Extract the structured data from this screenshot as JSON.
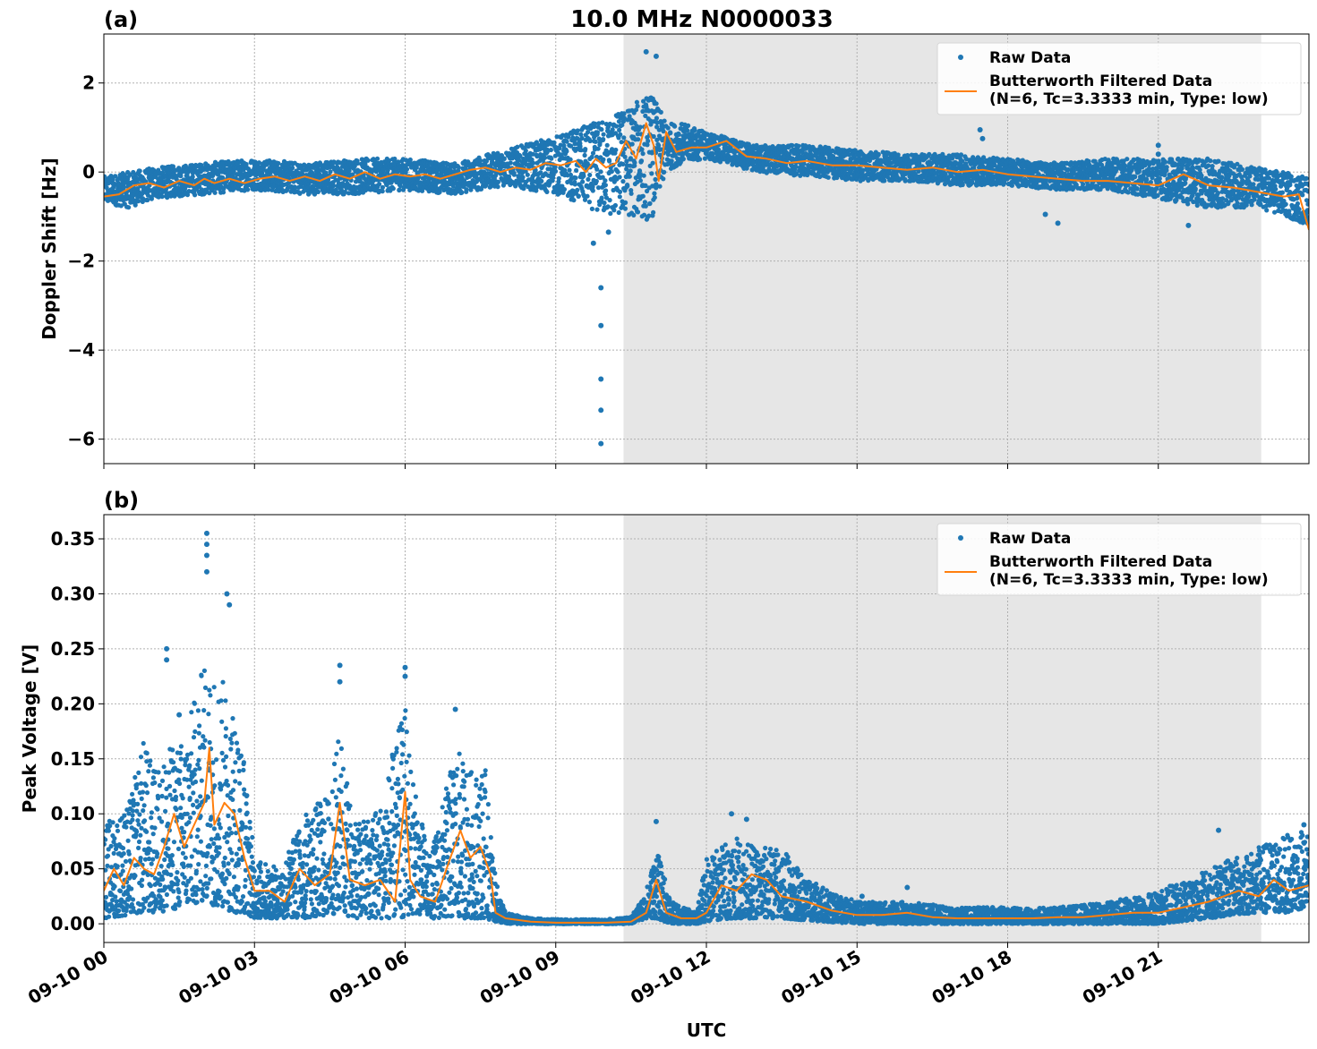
{
  "chart_data": [
    {
      "panel_label": "(a)",
      "type": "scatter",
      "title": "10.0 MHz N0000033",
      "ylabel": "Doppler Shift [Hz]",
      "xlabel": "",
      "xlim": [
        0,
        24
      ],
      "ylim": [
        -6.55,
        3.1
      ],
      "yticks": [
        2,
        0,
        -2,
        -4,
        -6
      ],
      "ytick_labels": [
        "2",
        "0",
        "−2",
        "−4",
        "−6"
      ],
      "grid": true,
      "legend_position": "top-right",
      "shaded_region": {
        "x_start": 10.35,
        "x_end": 23.05,
        "color": "#e6e6e6"
      },
      "series": [
        {
          "name": "Raw Data",
          "style": "points",
          "color": "#1f77b4",
          "envelope_x": [
            0.0,
            0.5,
            1.0,
            2.0,
            3.0,
            4.0,
            5.0,
            6.0,
            7.0,
            8.0,
            9.0,
            9.5,
            10.0,
            10.5,
            10.9,
            11.2,
            11.5,
            12.0,
            13.0,
            14.0,
            15.0,
            16.0,
            17.0,
            18.0,
            19.0,
            20.0,
            21.0,
            22.0,
            23.0,
            24.0
          ],
          "envelope_low": [
            -0.7,
            -0.8,
            -0.6,
            -0.5,
            -0.4,
            -0.5,
            -0.5,
            -0.4,
            -0.5,
            -0.3,
            -0.5,
            -0.7,
            -1.0,
            -1.0,
            -1.1,
            0.0,
            0.2,
            0.3,
            0.0,
            -0.1,
            -0.2,
            -0.2,
            -0.3,
            -0.3,
            -0.4,
            -0.4,
            -0.6,
            -0.8,
            -0.8,
            -1.2
          ],
          "envelope_high": [
            -0.1,
            0.0,
            0.1,
            0.2,
            0.3,
            0.2,
            0.3,
            0.3,
            0.2,
            0.5,
            0.8,
            1.0,
            1.2,
            1.5,
            1.8,
            1.1,
            1.1,
            0.9,
            0.6,
            0.6,
            0.5,
            0.4,
            0.4,
            0.3,
            0.2,
            0.3,
            0.3,
            0.3,
            0.1,
            -0.1
          ],
          "outliers": [
            [
              9.75,
              -1.6
            ],
            [
              9.9,
              -2.6
            ],
            [
              9.9,
              -3.45
            ],
            [
              9.9,
              -4.65
            ],
            [
              9.9,
              -5.35
            ],
            [
              9.9,
              -6.1
            ],
            [
              10.05,
              -1.35
            ],
            [
              10.8,
              2.7
            ],
            [
              11.0,
              2.6
            ],
            [
              17.45,
              0.95
            ],
            [
              17.5,
              0.75
            ],
            [
              18.75,
              -0.95
            ],
            [
              19.0,
              -1.15
            ],
            [
              21.0,
              0.6
            ],
            [
              21.0,
              0.4
            ],
            [
              21.6,
              -1.2
            ]
          ]
        },
        {
          "name": "Butterworth Filtered Data\n(N=6, Tc=3.3333 min, Type: low)",
          "style": "line",
          "color": "#ff7f0e",
          "x": [
            0.0,
            0.3,
            0.6,
            0.9,
            1.2,
            1.5,
            1.8,
            2.0,
            2.2,
            2.5,
            2.8,
            3.1,
            3.4,
            3.7,
            4.0,
            4.3,
            4.6,
            4.9,
            5.2,
            5.5,
            5.8,
            6.1,
            6.4,
            6.7,
            7.0,
            7.3,
            7.6,
            7.9,
            8.2,
            8.5,
            8.8,
            9.1,
            9.4,
            9.6,
            9.8,
            10.0,
            10.2,
            10.4,
            10.6,
            10.8,
            10.95,
            11.05,
            11.2,
            11.4,
            11.7,
            12.0,
            12.4,
            12.8,
            13.2,
            13.6,
            14.0,
            14.5,
            15.0,
            15.5,
            16.0,
            16.5,
            17.0,
            17.5,
            18.0,
            18.5,
            19.0,
            19.5,
            20.0,
            20.5,
            21.0,
            21.5,
            22.0,
            22.5,
            23.0,
            23.5,
            23.8,
            24.0
          ],
          "y": [
            -0.55,
            -0.5,
            -0.3,
            -0.25,
            -0.35,
            -0.2,
            -0.3,
            -0.15,
            -0.25,
            -0.15,
            -0.25,
            -0.15,
            -0.1,
            -0.2,
            -0.1,
            -0.2,
            -0.05,
            -0.15,
            0.0,
            -0.15,
            -0.05,
            -0.1,
            -0.05,
            -0.15,
            -0.05,
            0.05,
            0.1,
            0.0,
            0.1,
            0.05,
            0.2,
            0.15,
            0.25,
            0.0,
            0.3,
            0.1,
            0.2,
            0.7,
            0.3,
            1.1,
            0.6,
            -0.2,
            0.9,
            0.45,
            0.55,
            0.55,
            0.7,
            0.35,
            0.3,
            0.2,
            0.25,
            0.15,
            0.15,
            0.1,
            0.05,
            0.1,
            0.0,
            0.05,
            -0.05,
            -0.1,
            -0.15,
            -0.2,
            -0.2,
            -0.25,
            -0.3,
            -0.05,
            -0.3,
            -0.35,
            -0.45,
            -0.55,
            -0.5,
            -1.3
          ]
        }
      ],
      "legend": [
        {
          "label": "Raw Data",
          "marker": "point",
          "color": "#1f77b4"
        },
        {
          "label_line1": "Butterworth Filtered Data",
          "label_line2": "(N=6, Tc=3.3333 min, Type: low)",
          "marker": "line",
          "color": "#ff7f0e"
        }
      ]
    },
    {
      "panel_label": "(b)",
      "type": "scatter",
      "title": "",
      "ylabel": "Peak Voltage [V]",
      "xlabel": "UTC",
      "xlim": [
        0,
        24
      ],
      "ylim": [
        -0.017,
        0.372
      ],
      "yticks": [
        0.35,
        0.3,
        0.25,
        0.2,
        0.15,
        0.1,
        0.05,
        0.0
      ],
      "ytick_labels": [
        "0.35",
        "0.30",
        "0.25",
        "0.20",
        "0.15",
        "0.10",
        "0.05",
        "0.00"
      ],
      "xticks": [
        0,
        3,
        6,
        9,
        12,
        15,
        18,
        21
      ],
      "xtick_labels": [
        "09-10 00",
        "09-10 03",
        "09-10 06",
        "09-10 09",
        "09-10 12",
        "09-10 15",
        "09-10 18",
        "09-10 21"
      ],
      "grid": true,
      "legend_position": "top-right",
      "shaded_region": {
        "x_start": 10.35,
        "x_end": 23.05,
        "color": "#e6e6e6"
      },
      "series": [
        {
          "name": "Raw Data",
          "style": "points",
          "color": "#1f77b4",
          "envelope_x": [
            0.0,
            0.5,
            0.8,
            1.0,
            1.3,
            1.6,
            2.0,
            2.3,
            2.6,
            2.8,
            3.0,
            3.5,
            4.0,
            4.5,
            4.7,
            5.0,
            5.5,
            6.0,
            6.2,
            6.5,
            7.0,
            7.3,
            7.6,
            7.8,
            8.0,
            8.5,
            9.0,
            10.0,
            10.5,
            10.8,
            11.0,
            11.3,
            11.8,
            12.0,
            12.5,
            13.0,
            13.5,
            14.0,
            15.0,
            16.0,
            17.0,
            18.0,
            19.0,
            20.0,
            21.0,
            22.0,
            22.5,
            23.0,
            23.5,
            24.0
          ],
          "envelope_low": [
            0.005,
            0.008,
            0.01,
            0.01,
            0.012,
            0.015,
            0.02,
            0.015,
            0.01,
            0.01,
            0.005,
            0.005,
            0.005,
            0.008,
            0.01,
            0.005,
            0.005,
            0.005,
            0.01,
            0.005,
            0.005,
            0.005,
            0.005,
            0.002,
            0.0,
            0.0,
            0.0,
            0.0,
            0.0,
            0.005,
            0.005,
            0.0,
            0.0,
            0.002,
            0.005,
            0.005,
            0.005,
            0.003,
            0.0,
            0.0,
            0.0,
            0.0,
            0.0,
            0.0,
            0.0,
            0.005,
            0.008,
            0.01,
            0.01,
            0.015
          ],
          "envelope_high": [
            0.09,
            0.11,
            0.17,
            0.14,
            0.16,
            0.17,
            0.24,
            0.23,
            0.2,
            0.15,
            0.06,
            0.05,
            0.1,
            0.12,
            0.18,
            0.09,
            0.11,
            0.2,
            0.12,
            0.06,
            0.16,
            0.14,
            0.14,
            0.04,
            0.01,
            0.005,
            0.004,
            0.004,
            0.006,
            0.03,
            0.07,
            0.02,
            0.01,
            0.06,
            0.08,
            0.07,
            0.07,
            0.04,
            0.02,
            0.02,
            0.015,
            0.015,
            0.015,
            0.02,
            0.03,
            0.05,
            0.06,
            0.07,
            0.08,
            0.085
          ],
          "outliers": [
            [
              1.25,
              0.25
            ],
            [
              1.25,
              0.24
            ],
            [
              1.5,
              0.19
            ],
            [
              2.05,
              0.355
            ],
            [
              2.05,
              0.345
            ],
            [
              2.05,
              0.335
            ],
            [
              2.05,
              0.32
            ],
            [
              2.45,
              0.3
            ],
            [
              2.5,
              0.29
            ],
            [
              4.7,
              0.235
            ],
            [
              4.7,
              0.22
            ],
            [
              6.0,
              0.233
            ],
            [
              6.0,
              0.225
            ],
            [
              7.0,
              0.195
            ],
            [
              11.0,
              0.093
            ],
            [
              12.5,
              0.1
            ],
            [
              12.8,
              0.095
            ],
            [
              15.1,
              0.025
            ],
            [
              16.0,
              0.033
            ],
            [
              22.2,
              0.085
            ],
            [
              23.9,
              0.09
            ]
          ]
        },
        {
          "name": "Butterworth Filtered Data\n(N=6, Tc=3.3333 min, Type: low)",
          "style": "line",
          "color": "#ff7f0e",
          "x": [
            0.0,
            0.2,
            0.4,
            0.6,
            0.8,
            1.0,
            1.2,
            1.4,
            1.6,
            1.8,
            2.0,
            2.1,
            2.2,
            2.4,
            2.6,
            2.8,
            3.0,
            3.3,
            3.6,
            3.9,
            4.2,
            4.5,
            4.7,
            4.9,
            5.2,
            5.5,
            5.8,
            6.0,
            6.1,
            6.3,
            6.6,
            6.9,
            7.1,
            7.3,
            7.5,
            7.7,
            7.8,
            8.0,
            8.5,
            9.0,
            9.5,
            10.0,
            10.5,
            10.8,
            11.0,
            11.2,
            11.5,
            11.8,
            12.0,
            12.3,
            12.6,
            12.9,
            13.2,
            13.5,
            14.0,
            14.5,
            15.0,
            15.5,
            16.0,
            16.5,
            17.0,
            17.5,
            18.0,
            18.5,
            19.0,
            19.5,
            20.0,
            20.5,
            21.0,
            21.5,
            22.0,
            22.3,
            22.6,
            23.0,
            23.3,
            23.6,
            24.0
          ],
          "y": [
            0.03,
            0.05,
            0.035,
            0.06,
            0.05,
            0.045,
            0.07,
            0.1,
            0.07,
            0.09,
            0.11,
            0.16,
            0.09,
            0.11,
            0.1,
            0.06,
            0.03,
            0.03,
            0.02,
            0.05,
            0.035,
            0.045,
            0.11,
            0.04,
            0.035,
            0.04,
            0.02,
            0.12,
            0.04,
            0.025,
            0.02,
            0.06,
            0.085,
            0.06,
            0.07,
            0.045,
            0.01,
            0.005,
            0.002,
            0.001,
            0.001,
            0.001,
            0.002,
            0.01,
            0.04,
            0.01,
            0.005,
            0.005,
            0.01,
            0.035,
            0.03,
            0.045,
            0.04,
            0.025,
            0.02,
            0.012,
            0.008,
            0.008,
            0.01,
            0.006,
            0.005,
            0.005,
            0.005,
            0.005,
            0.006,
            0.006,
            0.008,
            0.01,
            0.01,
            0.015,
            0.02,
            0.025,
            0.03,
            0.025,
            0.04,
            0.03,
            0.035
          ]
        }
      ],
      "legend": [
        {
          "label": "Raw Data",
          "marker": "point",
          "color": "#1f77b4"
        },
        {
          "label_line1": "Butterworth Filtered Data",
          "label_line2": "(N=6, Tc=3.3333 min, Type: low)",
          "marker": "line",
          "color": "#ff7f0e"
        }
      ]
    }
  ]
}
